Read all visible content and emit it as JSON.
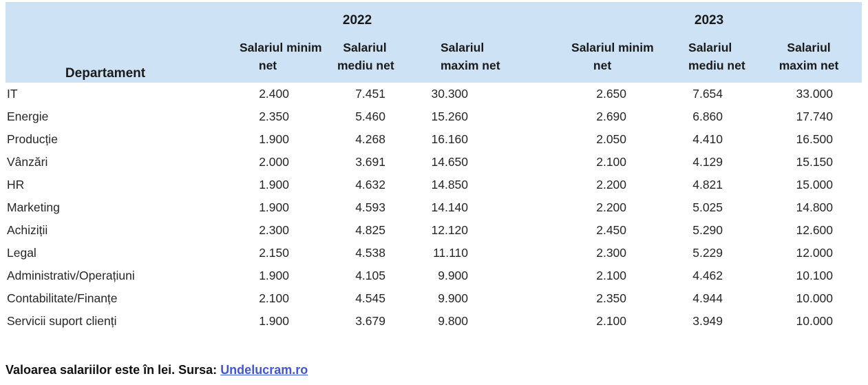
{
  "chart_data": {
    "type": "table",
    "dept_header": "Departament",
    "year_groups": [
      {
        "year": "2022",
        "col_lines": [
          [
            "Salariul minim",
            "net"
          ],
          [
            "Salariul",
            "mediu net"
          ],
          [
            "Salariul",
            "maxim net"
          ]
        ]
      },
      {
        "year": "2023",
        "col_lines": [
          [
            "Salariul minim",
            "net"
          ],
          [
            "Salariul",
            "mediu net"
          ],
          [
            "Salariul",
            "maxim net"
          ]
        ]
      }
    ],
    "rows": [
      {
        "dept": "IT",
        "values": [
          "2.400",
          "7.451",
          "30.300",
          "2.650",
          "7.654",
          "33.000"
        ]
      },
      {
        "dept": "Energie",
        "values": [
          "2.350",
          "5.460",
          "15.260",
          "2.690",
          "6.860",
          "17.740"
        ]
      },
      {
        "dept": "Producție",
        "values": [
          "1.900",
          "4.268",
          "16.160",
          "2.050",
          "4.410",
          "16.500"
        ]
      },
      {
        "dept": "Vânzări",
        "values": [
          "2.000",
          "3.691",
          "14.650",
          "2.100",
          "4.129",
          "15.150"
        ]
      },
      {
        "dept": "HR",
        "values": [
          "1.900",
          "4.632",
          "14.850",
          "2.200",
          "4.821",
          "15.000"
        ]
      },
      {
        "dept": "Marketing",
        "values": [
          "1.900",
          "4.593",
          "14.140",
          "2.200",
          "5.025",
          "14.800"
        ]
      },
      {
        "dept": "Achiziții",
        "values": [
          "2.300",
          "4.825",
          "12.120",
          "2.450",
          "5.290",
          "12.600"
        ]
      },
      {
        "dept": "Legal",
        "values": [
          "2.150",
          "4.538",
          "11.110",
          "2.300",
          "5.229",
          "12.000"
        ]
      },
      {
        "dept": "Administrativ/Operațiuni",
        "values": [
          "1.900",
          "4.105",
          "9.900",
          "2.100",
          "4.462",
          "10.100"
        ]
      },
      {
        "dept": "Contabilitate/Finanțe",
        "values": [
          "2.100",
          "4.545",
          "9.900",
          "2.350",
          "4.944",
          "10.000"
        ]
      },
      {
        "dept": "Servicii suport clienți",
        "values": [
          "1.900",
          "3.679",
          "9.800",
          "2.100",
          "3.949",
          "10.000"
        ]
      }
    ],
    "footer_note": "Valoarea salariilor este în lei. Sursa:",
    "source_link": "Undelucram.ro"
  },
  "colors": {
    "header_bg": "#cde2f4",
    "link": "#4056d6",
    "text": "#262626"
  }
}
